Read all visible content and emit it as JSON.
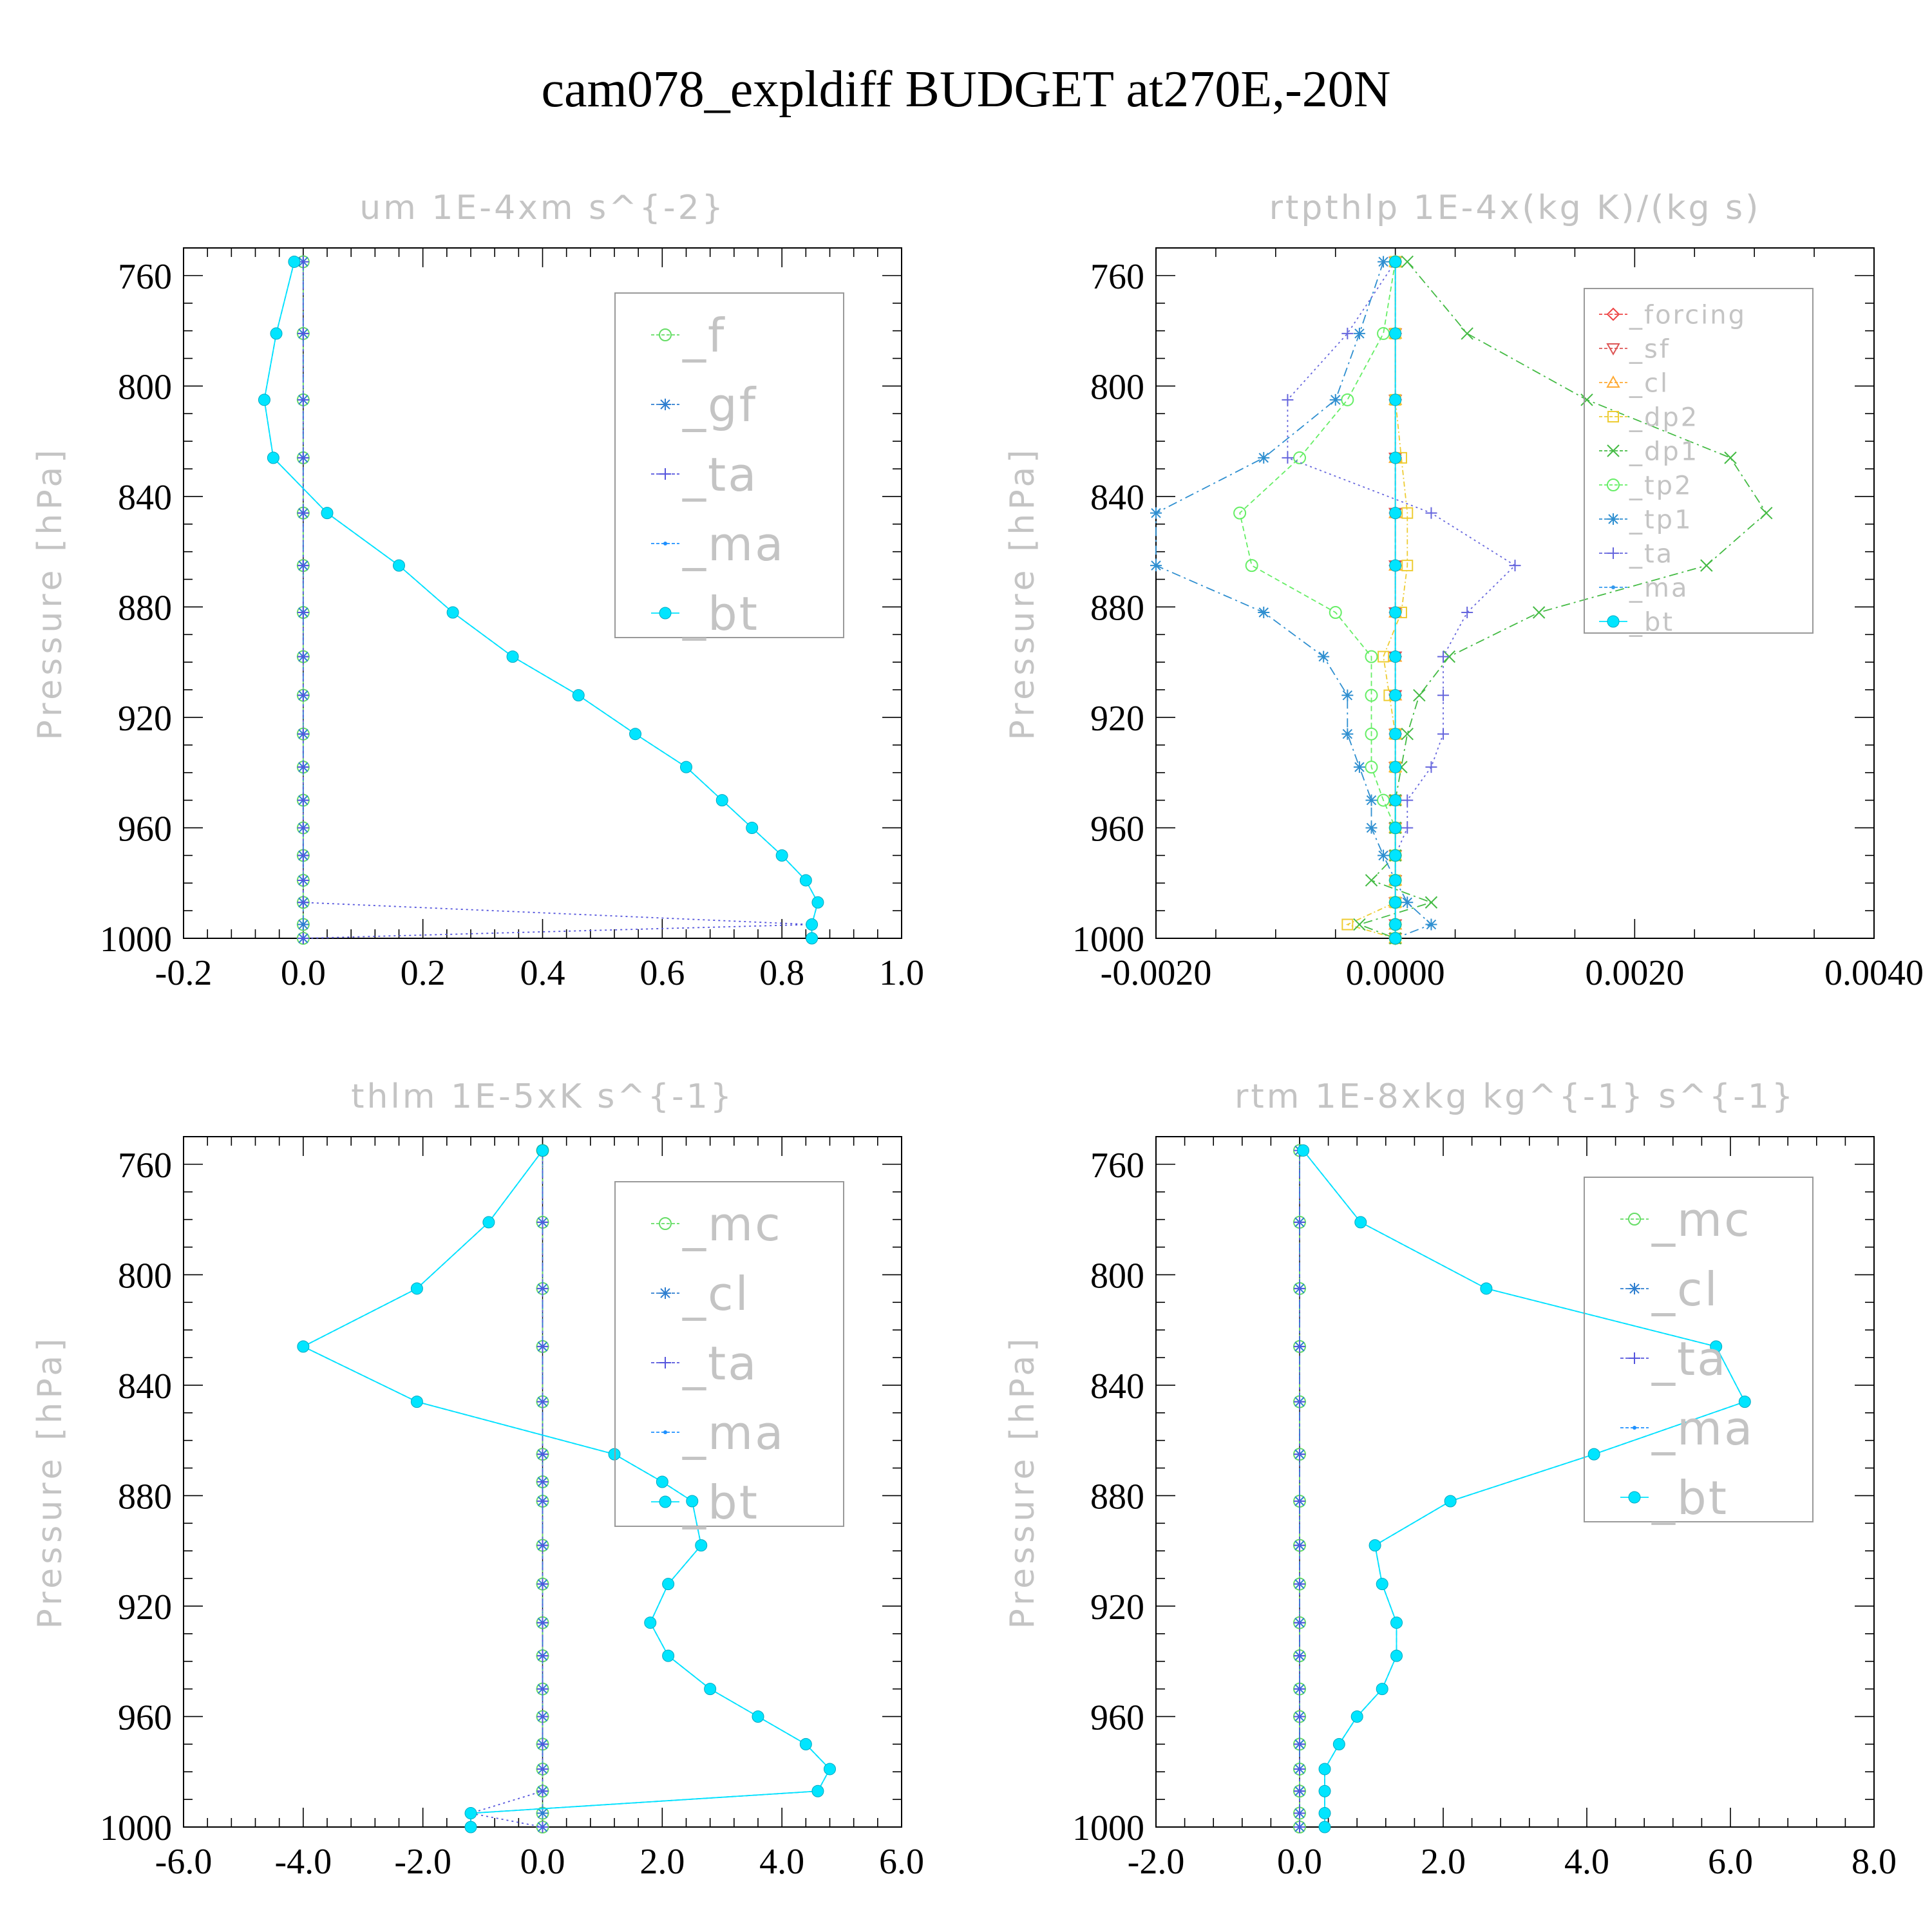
{
  "figure": {
    "title": "cam078_expldiff  BUDGET at270E,-20N"
  },
  "chart_data": [
    {
      "type": "line",
      "title": "um   1E-4xm s^{-2}",
      "ylabel": "Pressure [hPa]",
      "xlim": [
        -0.2,
        1.0
      ],
      "ylim": [
        1000,
        750
      ],
      "xticks": [
        "-0.2",
        "0.0",
        "0.2",
        "0.4",
        "0.6",
        "0.8",
        "1.0"
      ],
      "yticks": [
        "760",
        "800",
        "840",
        "880",
        "920",
        "960",
        "1000"
      ],
      "legend_position": "top-right",
      "levels": [
        755,
        781,
        805,
        826,
        846,
        865,
        882,
        898,
        912,
        926,
        938,
        950,
        960,
        970,
        979,
        987,
        995,
        1000
      ],
      "series": [
        {
          "name": "_f",
          "color": "#66dd66",
          "marker": "circle",
          "dash": "6,5",
          "values": [
            0,
            0,
            0,
            0,
            0,
            0,
            0,
            0,
            0,
            0,
            0,
            0,
            0,
            0,
            0,
            0,
            0,
            0
          ]
        },
        {
          "name": "_gf",
          "color": "#2f7fd0",
          "marker": "star",
          "dash": "14,6,3,6",
          "values": [
            0,
            0,
            0,
            0,
            0,
            0,
            0,
            0,
            0,
            0,
            0,
            0,
            0,
            0,
            0,
            0,
            0,
            0
          ]
        },
        {
          "name": "_ta",
          "color": "#5555dd",
          "marker": "plus",
          "dash": "3,5",
          "values": [
            0,
            0,
            0,
            0,
            0,
            0,
            0,
            0,
            0,
            0,
            0,
            0,
            0,
            0,
            0,
            0,
            0.85,
            0
          ]
        },
        {
          "name": "_ma",
          "color": "#1e90ff",
          "marker": "dot",
          "dash": "7,4",
          "values": [
            -0.015,
            -0.045,
            -0.065,
            -0.05,
            0.04,
            0.16,
            0.25,
            0.35,
            0.46,
            0.555,
            0.64,
            0.7,
            0.75,
            0.8,
            0.84,
            0.86,
            0.85,
            0.85
          ]
        },
        {
          "name": "_bt",
          "color": "#00e5ff",
          "marker": "filled",
          "dash": "",
          "values": [
            -0.015,
            -0.045,
            -0.065,
            -0.05,
            0.04,
            0.16,
            0.25,
            0.35,
            0.46,
            0.555,
            0.64,
            0.7,
            0.75,
            0.8,
            0.84,
            0.86,
            0.85,
            0.85
          ]
        }
      ]
    },
    {
      "type": "line",
      "title": "rtpthlp   1E-4x(kg K)/(kg s)",
      "ylabel": "Pressure [hPa]",
      "xlim": [
        -0.002,
        0.004
      ],
      "ylim": [
        1000,
        750
      ],
      "xticks": [
        "-0.0020",
        "0.0000",
        "0.0020",
        "0.0040"
      ],
      "yticks": [
        "760",
        "800",
        "840",
        "880",
        "920",
        "960",
        "1000"
      ],
      "legend_position": "top-right",
      "levels": [
        755,
        781,
        805,
        826,
        846,
        865,
        882,
        898,
        912,
        926,
        938,
        950,
        960,
        970,
        979,
        987,
        995,
        1000
      ],
      "series": [
        {
          "name": "_forcing",
          "color": "#ee4444",
          "marker": "diamond",
          "dash": "6,4",
          "values": [
            0,
            0,
            0,
            0,
            0,
            0,
            0,
            0,
            0,
            0,
            0,
            0,
            0,
            0,
            0,
            0,
            0,
            0
          ]
        },
        {
          "name": "_sf",
          "color": "#dd5555",
          "marker": "tri-down",
          "dash": "4,4",
          "values": [
            0,
            0,
            0,
            0,
            0,
            0,
            0,
            0,
            0,
            0,
            0,
            0,
            0,
            0,
            0,
            0,
            0,
            0
          ]
        },
        {
          "name": "_cl",
          "color": "#ffaa33",
          "marker": "tri-up",
          "dash": "6,4",
          "values": [
            0,
            0,
            0,
            0,
            0,
            0,
            0,
            0,
            0,
            0,
            0,
            0,
            0,
            0,
            0,
            0,
            0,
            0
          ]
        },
        {
          "name": "_dp2",
          "color": "#eecc33",
          "marker": "square",
          "dash": "8,4,2,4",
          "values": [
            0,
            0,
            0,
            5e-05,
            0.0001,
            0.0001,
            5e-05,
            -0.0001,
            -5e-05,
            0,
            0,
            0,
            0,
            0,
            0,
            0,
            -0.0004,
            0
          ]
        },
        {
          "name": "_dp1",
          "color": "#44bb44",
          "marker": "x",
          "dash": "14,6,3,6",
          "values": [
            0.0001,
            0.0006,
            0.0016,
            0.0028,
            0.0031,
            0.0026,
            0.0012,
            0.00045,
            0.0002,
            0.0001,
            5e-05,
            0,
            0,
            0,
            -0.0002,
            0.0003,
            -0.0003,
            0
          ]
        },
        {
          "name": "_tp2",
          "color": "#66ee66",
          "marker": "circle",
          "dash": "8,5",
          "values": [
            0,
            -0.0001,
            -0.0004,
            -0.0008,
            -0.0013,
            -0.0012,
            -0.0005,
            -0.0002,
            -0.0002,
            -0.0002,
            -0.0002,
            -0.0001,
            0,
            0,
            0,
            0,
            0,
            0
          ]
        },
        {
          "name": "_tp1",
          "color": "#2f8fd0",
          "marker": "star",
          "dash": "14,6,3,6",
          "values": [
            -0.0001,
            -0.0003,
            -0.0005,
            -0.0011,
            -0.002,
            -0.002,
            -0.0011,
            -0.0006,
            -0.0004,
            -0.0004,
            -0.0003,
            -0.0002,
            -0.0002,
            -0.0001,
            0,
            0.0001,
            0.0003,
            0
          ]
        },
        {
          "name": "_ta",
          "color": "#6666dd",
          "marker": "plus",
          "dash": "3,5",
          "values": [
            0,
            -0.0004,
            -0.0009,
            -0.0009,
            0.0003,
            0.001,
            0.0006,
            0.0004,
            0.0004,
            0.0004,
            0.0003,
            0.0001,
            0.0001,
            0,
            0,
            0,
            0,
            0
          ]
        },
        {
          "name": "_ma",
          "color": "#3399ee",
          "marker": "dot",
          "dash": "7,4",
          "values": [
            0,
            0,
            0,
            0,
            0,
            0,
            0,
            0,
            0,
            0,
            0,
            0,
            0,
            0,
            0,
            0,
            0,
            0
          ]
        },
        {
          "name": "_bt",
          "color": "#00e5ff",
          "marker": "filled",
          "dash": "",
          "values": [
            0,
            0,
            0,
            0,
            0,
            0,
            0,
            0,
            0,
            0,
            0,
            0,
            0,
            0,
            0,
            0,
            0,
            0
          ]
        }
      ]
    },
    {
      "type": "line",
      "title": "thlm   1E-5xK s^{-1}",
      "ylabel": "Pressure [hPa]",
      "xlim": [
        -6.0,
        6.0
      ],
      "ylim": [
        1000,
        750
      ],
      "xticks": [
        "-6.0",
        "-4.0",
        "-2.0",
        "0.0",
        "2.0",
        "4.0",
        "6.0"
      ],
      "yticks": [
        "760",
        "800",
        "840",
        "880",
        "920",
        "960",
        "1000"
      ],
      "legend_position": "top-right",
      "levels": [
        755,
        781,
        805,
        826,
        846,
        865,
        875,
        882,
        898,
        912,
        926,
        938,
        950,
        960,
        970,
        979,
        987,
        995,
        1000
      ],
      "series": [
        {
          "name": "_mc",
          "color": "#66dd66",
          "marker": "circle",
          "dash": "6,5",
          "values": [
            0,
            0,
            0,
            0,
            0,
            0,
            0,
            0,
            0,
            0,
            0,
            0,
            0,
            0,
            0,
            0,
            0,
            0,
            0
          ]
        },
        {
          "name": "_cl",
          "color": "#2f7fd0",
          "marker": "star",
          "dash": "14,6,3,6",
          "values": [
            0,
            0,
            0,
            0,
            0,
            0,
            0,
            0,
            0,
            0,
            0,
            0,
            0,
            0,
            0,
            0,
            0,
            0,
            0
          ]
        },
        {
          "name": "_ta",
          "color": "#5555dd",
          "marker": "plus",
          "dash": "3,5",
          "values": [
            0,
            0,
            0,
            0,
            0,
            0,
            0,
            0,
            0,
            0,
            0,
            0,
            0,
            0,
            0,
            0,
            0,
            -1.2,
            0
          ]
        },
        {
          "name": "_ma",
          "color": "#1e90ff",
          "marker": "dot",
          "dash": "7,4",
          "values": [
            0,
            -0.9,
            -2.1,
            -4.0,
            -2.1,
            1.2,
            2.0,
            2.5,
            2.65,
            2.1,
            1.8,
            2.1,
            2.8,
            3.6,
            4.4,
            4.8,
            4.6,
            -1.2,
            -1.2
          ]
        },
        {
          "name": "_bt",
          "color": "#00e5ff",
          "marker": "filled",
          "dash": "",
          "values": [
            0,
            -0.9,
            -2.1,
            -4.0,
            -2.1,
            1.2,
            2.0,
            2.5,
            2.65,
            2.1,
            1.8,
            2.1,
            2.8,
            3.6,
            4.4,
            4.8,
            4.6,
            -1.2,
            -1.2
          ]
        }
      ]
    },
    {
      "type": "line",
      "title": "rtm   1E-8xkg kg^{-1} s^{-1}",
      "ylabel": "Pressure [hPa]",
      "xlim": [
        -2.0,
        8.0
      ],
      "ylim": [
        1000,
        750
      ],
      "xticks": [
        "-2.0",
        "0.0",
        "2.0",
        "4.0",
        "6.0",
        "8.0"
      ],
      "yticks": [
        "760",
        "800",
        "840",
        "880",
        "920",
        "960",
        "1000"
      ],
      "legend_position": "top-right",
      "levels": [
        755,
        781,
        805,
        826,
        846,
        865,
        882,
        898,
        912,
        926,
        938,
        950,
        960,
        970,
        979,
        987,
        995,
        1000
      ],
      "series": [
        {
          "name": "_mc",
          "color": "#66dd66",
          "marker": "circle",
          "dash": "6,5",
          "values": [
            0,
            0,
            0,
            0,
            0,
            0,
            0,
            0,
            0,
            0,
            0,
            0,
            0,
            0,
            0,
            0,
            0,
            0
          ]
        },
        {
          "name": "_cl",
          "color": "#2f7fd0",
          "marker": "star",
          "dash": "14,6,3,6",
          "values": [
            0,
            0,
            0,
            0,
            0,
            0,
            0,
            0,
            0,
            0,
            0,
            0,
            0,
            0,
            0,
            0,
            0,
            0
          ]
        },
        {
          "name": "_ta",
          "color": "#5555dd",
          "marker": "plus",
          "dash": "3,5",
          "values": [
            0,
            0,
            0,
            0,
            0,
            0,
            0,
            0,
            0,
            0,
            0,
            0,
            0,
            0,
            0,
            0,
            0,
            0
          ]
        },
        {
          "name": "_ma",
          "color": "#1e90ff",
          "marker": "dot",
          "dash": "7,4",
          "values": [
            0.05,
            0.85,
            2.6,
            5.8,
            6.2,
            4.1,
            2.1,
            1.05,
            1.15,
            1.35,
            1.35,
            1.15,
            0.8,
            0.55,
            0.35,
            0.35,
            0.35,
            0.35
          ]
        },
        {
          "name": "_bt",
          "color": "#00e5ff",
          "marker": "filled",
          "dash": "",
          "values": [
            0.05,
            0.85,
            2.6,
            5.8,
            6.2,
            4.1,
            2.1,
            1.05,
            1.15,
            1.35,
            1.35,
            1.15,
            0.8,
            0.55,
            0.35,
            0.35,
            0.35,
            0.35
          ]
        }
      ]
    }
  ]
}
